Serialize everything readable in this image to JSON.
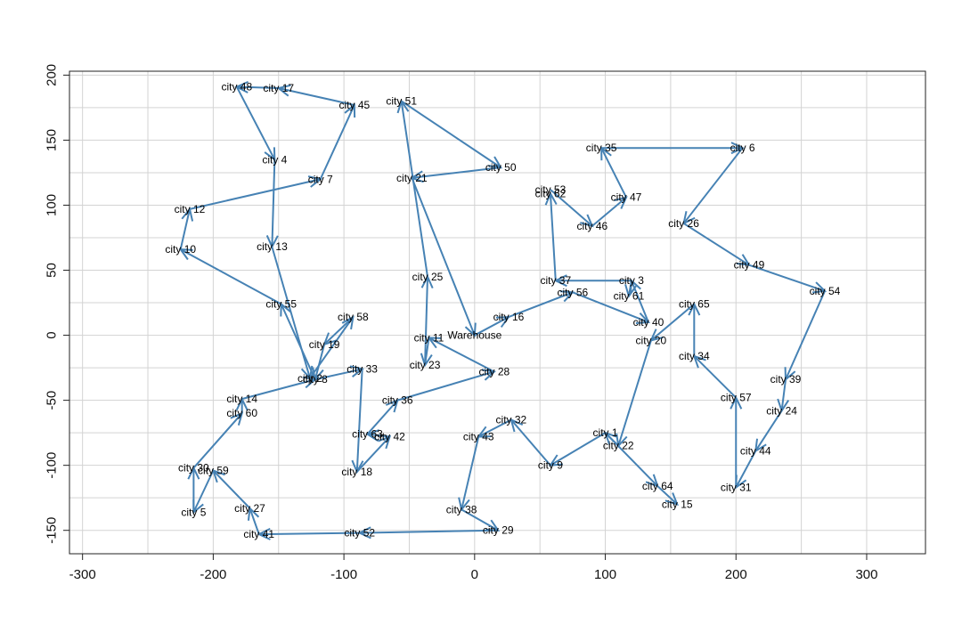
{
  "chart_data": {
    "type": "scatter",
    "title": "",
    "xlabel": "",
    "ylabel": "",
    "xlim": [
      -310,
      345
    ],
    "ylim": [
      -168,
      203
    ],
    "grid": true,
    "line_color": "#4682B4",
    "x_ticks": [
      -300,
      -200,
      -100,
      0,
      100,
      200,
      300
    ],
    "y_ticks": [
      -150,
      -100,
      -50,
      0,
      50,
      100,
      150,
      200
    ],
    "points": [
      {
        "label": "Warehouse",
        "x": 0,
        "y": 0
      },
      {
        "label": "city 1",
        "x": 100,
        "y": -75
      },
      {
        "label": "city 2",
        "x": -126,
        "y": -33
      },
      {
        "label": "city 3",
        "x": 120,
        "y": 42
      },
      {
        "label": "city 4",
        "x": -153,
        "y": 135
      },
      {
        "label": "city 5",
        "x": -215,
        "y": -136
      },
      {
        "label": "city 6",
        "x": 205,
        "y": 144
      },
      {
        "label": "city 7",
        "x": -118,
        "y": 120
      },
      {
        "label": "city 8",
        "x": -122,
        "y": -34
      },
      {
        "label": "city 9",
        "x": 58,
        "y": -100
      },
      {
        "label": "city 10",
        "x": -225,
        "y": 66
      },
      {
        "label": "city 11",
        "x": -35,
        "y": -2
      },
      {
        "label": "city 12",
        "x": -218,
        "y": 97
      },
      {
        "label": "city 13",
        "x": -155,
        "y": 68
      },
      {
        "label": "city 14",
        "x": -178,
        "y": -49
      },
      {
        "label": "city 15",
        "x": 155,
        "y": -130
      },
      {
        "label": "city 16",
        "x": 26,
        "y": 14
      },
      {
        "label": "city 17",
        "x": -150,
        "y": 190
      },
      {
        "label": "city 18",
        "x": -90,
        "y": -105
      },
      {
        "label": "city 19",
        "x": -115,
        "y": -7
      },
      {
        "label": "city 20",
        "x": 135,
        "y": -4
      },
      {
        "label": "city 21",
        "x": -48,
        "y": 121
      },
      {
        "label": "city 22",
        "x": 110,
        "y": -85
      },
      {
        "label": "city 23",
        "x": -38,
        "y": -23
      },
      {
        "label": "city 24",
        "x": 235,
        "y": -58
      },
      {
        "label": "city 25",
        "x": -36,
        "y": 45
      },
      {
        "label": "city 26",
        "x": 160,
        "y": 86
      },
      {
        "label": "city 27",
        "x": -172,
        "y": -133
      },
      {
        "label": "city 28",
        "x": 15,
        "y": -28
      },
      {
        "label": "city 29",
        "x": 18,
        "y": -150
      },
      {
        "label": "city 30",
        "x": -215,
        "y": -102
      },
      {
        "label": "city 31",
        "x": 200,
        "y": -117
      },
      {
        "label": "city 32",
        "x": 28,
        "y": -65
      },
      {
        "label": "city 33",
        "x": -86,
        "y": -26
      },
      {
        "label": "city 34",
        "x": 168,
        "y": -16
      },
      {
        "label": "city 35",
        "x": 97,
        "y": 144
      },
      {
        "label": "city 36",
        "x": -59,
        "y": -50
      },
      {
        "label": "city 37",
        "x": 62,
        "y": 42
      },
      {
        "label": "city 38",
        "x": -10,
        "y": -134
      },
      {
        "label": "city 39",
        "x": 238,
        "y": -34
      },
      {
        "label": "city 40",
        "x": 133,
        "y": 10
      },
      {
        "label": "city 41",
        "x": -165,
        "y": -153
      },
      {
        "label": "city 42",
        "x": -65,
        "y": -78
      },
      {
        "label": "city 43",
        "x": 3,
        "y": -78
      },
      {
        "label": "city 44",
        "x": 215,
        "y": -89
      },
      {
        "label": "city 45",
        "x": -92,
        "y": 177
      },
      {
        "label": "city 46",
        "x": 90,
        "y": 84
      },
      {
        "label": "city 47",
        "x": 116,
        "y": 106
      },
      {
        "label": "city 48",
        "x": -182,
        "y": 191
      },
      {
        "label": "city 49",
        "x": 210,
        "y": 54
      },
      {
        "label": "city 50",
        "x": 20,
        "y": 129
      },
      {
        "label": "city 51",
        "x": -56,
        "y": 180
      },
      {
        "label": "city 52",
        "x": -88,
        "y": -152
      },
      {
        "label": "city 53",
        "x": 58,
        "y": 112
      },
      {
        "label": "city 54",
        "x": 268,
        "y": 34
      },
      {
        "label": "city 55",
        "x": -148,
        "y": 24
      },
      {
        "label": "city 56",
        "x": 75,
        "y": 33
      },
      {
        "label": "city 57",
        "x": 200,
        "y": -48
      },
      {
        "label": "city 58",
        "x": -93,
        "y": 14
      },
      {
        "label": "city 59",
        "x": -200,
        "y": -104
      },
      {
        "label": "city 60",
        "x": -178,
        "y": -60
      },
      {
        "label": "city 61",
        "x": 118,
        "y": 30
      },
      {
        "label": "city 62",
        "x": 58,
        "y": 109
      },
      {
        "label": "city 63",
        "x": -82,
        "y": -76
      },
      {
        "label": "city 64",
        "x": 140,
        "y": -116
      },
      {
        "label": "city 65",
        "x": 168,
        "y": 24
      }
    ],
    "arrows": [
      [
        "city 21",
        "Warehouse"
      ],
      [
        "Warehouse",
        "city 16"
      ],
      [
        "city 16",
        "city 56"
      ],
      [
        "city 56",
        "city 40"
      ],
      [
        "city 40",
        "city 3"
      ],
      [
        "city 3",
        "city 37"
      ],
      [
        "city 37",
        "city 62"
      ],
      [
        "city 53",
        "city 46"
      ],
      [
        "city 46",
        "city 47"
      ],
      [
        "city 47",
        "city 35"
      ],
      [
        "city 35",
        "city 6"
      ],
      [
        "city 6",
        "city 26"
      ],
      [
        "city 26",
        "city 49"
      ],
      [
        "city 49",
        "city 54"
      ],
      [
        "city 54",
        "city 39"
      ],
      [
        "city 39",
        "city 24"
      ],
      [
        "city 24",
        "city 44"
      ],
      [
        "city 44",
        "city 31"
      ],
      [
        "city 31",
        "city 57"
      ],
      [
        "city 57",
        "city 34"
      ],
      [
        "city 34",
        "city 65"
      ],
      [
        "city 65",
        "city 20"
      ],
      [
        "city 20",
        "city 22"
      ],
      [
        "city 22",
        "city 1"
      ],
      [
        "city 1",
        "city 9"
      ],
      [
        "city 9",
        "city 32"
      ],
      [
        "city 32",
        "city 43"
      ],
      [
        "city 43",
        "city 38"
      ],
      [
        "city 38",
        "city 29"
      ],
      [
        "city 29",
        "city 52"
      ],
      [
        "city 52",
        "city 41"
      ],
      [
        "city 41",
        "city 27"
      ],
      [
        "city 27",
        "city 59"
      ],
      [
        "city 59",
        "city 5"
      ],
      [
        "city 5",
        "city 30"
      ],
      [
        "city 30",
        "city 60"
      ],
      [
        "city 60",
        "city 14"
      ],
      [
        "city 14",
        "city 8"
      ],
      [
        "city 8",
        "city 55"
      ],
      [
        "city 55",
        "city 10"
      ],
      [
        "city 10",
        "city 12"
      ],
      [
        "city 12",
        "city 7"
      ],
      [
        "city 7",
        "city 45"
      ],
      [
        "city 45",
        "city 17"
      ],
      [
        "city 17",
        "city 48"
      ],
      [
        "city 48",
        "city 4"
      ],
      [
        "city 4",
        "city 13"
      ],
      [
        "city 13",
        "city 2"
      ],
      [
        "city 2",
        "city 58"
      ],
      [
        "city 58",
        "city 19"
      ],
      [
        "city 19",
        "city 8"
      ],
      [
        "city 8",
        "city 33"
      ],
      [
        "city 33",
        "city 18"
      ],
      [
        "city 18",
        "city 42"
      ],
      [
        "city 42",
        "city 63"
      ],
      [
        "city 63",
        "city 36"
      ],
      [
        "city 36",
        "city 28"
      ],
      [
        "city 28",
        "city 11"
      ],
      [
        "city 11",
        "city 23"
      ],
      [
        "city 23",
        "city 25"
      ],
      [
        "city 25",
        "city 51"
      ],
      [
        "city 51",
        "city 50"
      ],
      [
        "city 50",
        "city 21"
      ],
      [
        "city 1",
        "city 64"
      ],
      [
        "city 64",
        "city 15"
      ],
      [
        "city 3",
        "city 61"
      ]
    ]
  }
}
